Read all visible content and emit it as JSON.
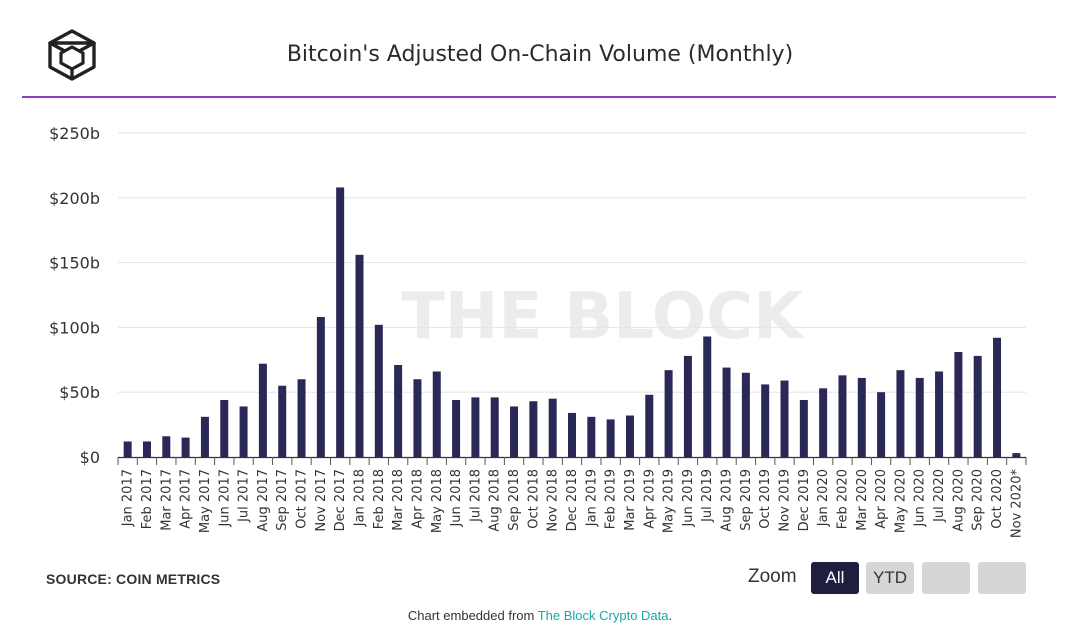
{
  "header": {
    "title": "Bitcoin's Adjusted On-Chain Volume (Monthly)",
    "logo_icon": "the-block-cube-logo"
  },
  "footer": {
    "source": "SOURCE: COIN METRICS",
    "zoom_label": "Zoom",
    "zoom_all": "All",
    "zoom_ytd": "YTD",
    "embed_prefix": "Chart embedded from ",
    "embed_link": "The Block Crypto Data",
    "embed_suffix": "."
  },
  "colors": {
    "bar": "#2a2857",
    "accent_rule": "#8a3fc1",
    "link": "#1aa7a9"
  },
  "chart_data": {
    "type": "bar",
    "title": "Bitcoin's Adjusted On-Chain Volume (Monthly)",
    "watermark": "THE BLOCK",
    "ylim": [
      0,
      250
    ],
    "yticks": [
      0,
      50,
      100,
      150,
      200,
      250
    ],
    "ytick_labels": [
      "$0",
      "$50b",
      "$100b",
      "$150b",
      "$200b",
      "$250b"
    ],
    "grid": "horizontal",
    "categories": [
      "Jan 2017",
      "Feb 2017",
      "Mar 2017",
      "Apr 2017",
      "May 2017",
      "Jun 2017",
      "Jul 2017",
      "Aug 2017",
      "Sep 2017",
      "Oct 2017",
      "Nov 2017",
      "Dec 2017",
      "Jan 2018",
      "Feb 2018",
      "Mar 2018",
      "Apr 2018",
      "May 2018",
      "Jun 2018",
      "Jul 2018",
      "Aug 2018",
      "Sep 2018",
      "Oct 2018",
      "Nov 2018",
      "Dec 2018",
      "Jan 2019",
      "Feb 2019",
      "Mar 2019",
      "Apr 2019",
      "May 2019",
      "Jun 2019",
      "Jul 2019",
      "Aug 2019",
      "Sep 2019",
      "Oct 2019",
      "Nov 2019",
      "Dec 2019",
      "Jan 2020",
      "Feb 2020",
      "Mar 2020",
      "Apr 2020",
      "May 2020",
      "Jun 2020",
      "Jul 2020",
      "Aug 2020",
      "Sep 2020",
      "Oct 2020",
      "Nov 2020*"
    ],
    "values": [
      12,
      12,
      16,
      15,
      31,
      44,
      39,
      72,
      55,
      60,
      108,
      208,
      156,
      102,
      71,
      60,
      66,
      44,
      46,
      46,
      39,
      43,
      45,
      34,
      31,
      29,
      32,
      48,
      67,
      78,
      93,
      69,
      65,
      56,
      59,
      44,
      53,
      63,
      61,
      50,
      67,
      61,
      66,
      81,
      78,
      92,
      3
    ]
  }
}
